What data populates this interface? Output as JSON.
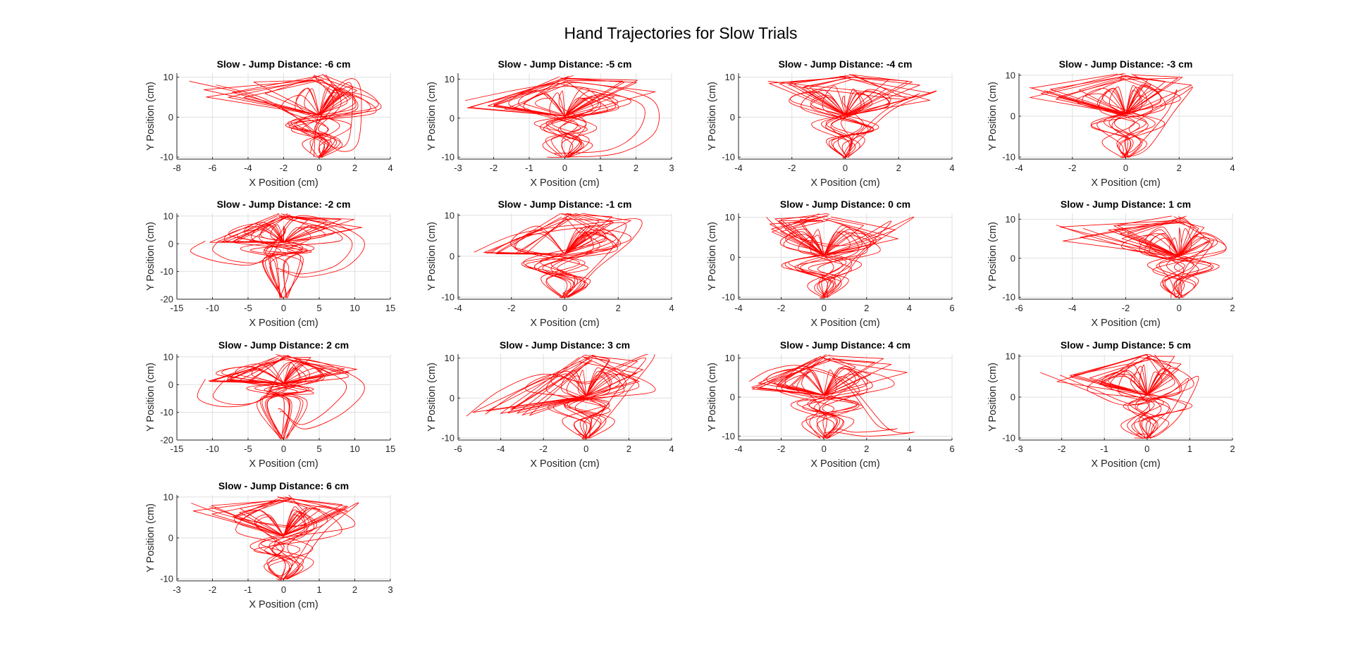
{
  "figure": {
    "title": "Hand Trajectories for Slow Trials",
    "line_color": "#ff0000"
  },
  "chart_data": [
    {
      "type": "line",
      "title": "Slow - Jump Distance: -6 cm",
      "jump": -6,
      "xlabel": "X Position (cm)",
      "ylabel": "Y Position (cm)",
      "xlim": [
        -8,
        4
      ],
      "ylim": [
        -10.5,
        11
      ],
      "xticks": [
        -8,
        -6,
        -4,
        -2,
        0,
        2,
        4
      ],
      "yticks": [
        -10,
        0,
        10
      ],
      "grid": true,
      "series": [
        {
          "x": [
            -7.3,
            -4,
            -1.5,
            0,
            1.2,
            2.2,
            2.3,
            1.4,
            0,
            -0.3
          ],
          "y": [
            9,
            5.5,
            0.5,
            -4.5,
            -8.5,
            -6,
            7.5,
            9,
            1,
            -10
          ]
        }
      ]
    },
    {
      "type": "line",
      "title": "Slow - Jump Distance: -5 cm",
      "jump": -5,
      "xlabel": "X Position (cm)",
      "ylabel": "Y Position (cm)",
      "xlim": [
        -3,
        3
      ],
      "ylim": [
        -10.5,
        11.5
      ],
      "xticks": [
        -3,
        -2,
        -1,
        0,
        1,
        2,
        3
      ],
      "yticks": [
        -10,
        0,
        10
      ],
      "grid": true,
      "series": [
        {
          "x": [
            -2.8,
            -1.5,
            -0.5,
            0.5,
            2.0,
            2.6,
            2.5,
            1.5,
            0,
            -0.5
          ],
          "y": [
            4.5,
            7,
            8.5,
            9,
            6.5,
            3,
            -4,
            -9,
            -10,
            -10
          ]
        }
      ]
    },
    {
      "type": "line",
      "title": "Slow - Jump Distance: -4 cm",
      "jump": -4,
      "xlabel": "X Position (cm)",
      "ylabel": "Y Position (cm)",
      "xlim": [
        -4,
        4
      ],
      "ylim": [
        -10.5,
        11
      ],
      "xticks": [
        -4,
        -2,
        0,
        2,
        4
      ],
      "yticks": [
        -10,
        0,
        10
      ],
      "grid": true,
      "series": [
        {
          "x": [
            -2.9,
            -1.5,
            0,
            1.2,
            2.5,
            3.4,
            1.8,
            0.5,
            0,
            -0.1
          ],
          "y": [
            9,
            8,
            7,
            6,
            5,
            6.5,
            2,
            -6,
            -10,
            -10
          ]
        }
      ]
    },
    {
      "type": "line",
      "title": "Slow - Jump Distance: -3 cm",
      "jump": -3,
      "xlabel": "X Position (cm)",
      "ylabel": "Y Position (cm)",
      "xlim": [
        -4,
        4
      ],
      "ylim": [
        -10.5,
        10.5
      ],
      "xticks": [
        -4,
        -2,
        0,
        2,
        4
      ],
      "yticks": [
        -10,
        0,
        10
      ],
      "grid": true,
      "series": [
        {
          "x": [
            -3.6,
            -2,
            -1,
            0.5,
            2,
            2.5,
            1.8,
            0.8,
            0,
            -0.2
          ],
          "y": [
            7,
            4,
            2,
            0,
            5,
            7,
            1,
            -8,
            -10,
            -10
          ]
        }
      ]
    },
    {
      "type": "line",
      "title": "Slow - Jump Distance: -2 cm",
      "jump": -2,
      "xlabel": "X Position (cm)",
      "ylabel": "Y Position (cm)",
      "xlim": [
        -15,
        15
      ],
      "ylim": [
        -20,
        11
      ],
      "xticks": [
        -15,
        -10,
        -5,
        0,
        5,
        10,
        15
      ],
      "yticks": [
        -20,
        -10,
        0,
        10
      ],
      "grid": true,
      "series": [
        {
          "x": [
            -11,
            -13,
            -8,
            -3,
            2,
            11,
            9,
            3,
            0,
            -0.5
          ],
          "y": [
            1,
            -3,
            -7,
            -6,
            10,
            2,
            -8,
            -12,
            -10,
            -10
          ]
        }
      ]
    },
    {
      "type": "line",
      "title": "Slow - Jump Distance: -1 cm",
      "jump": -1,
      "xlabel": "X Position (cm)",
      "ylabel": "Y Position (cm)",
      "xlim": [
        -4,
        4
      ],
      "ylim": [
        -10.5,
        10.5
      ],
      "xticks": [
        -4,
        -2,
        0,
        2,
        4
      ],
      "yticks": [
        -10,
        0,
        10
      ],
      "grid": true,
      "series": [
        {
          "x": [
            -3.4,
            -2,
            -0.5,
            1,
            2.8,
            2.5,
            1.2,
            0.5,
            0,
            -0.2
          ],
          "y": [
            1,
            5,
            7,
            8,
            9,
            4,
            -3,
            -8,
            -10,
            -10
          ]
        }
      ]
    },
    {
      "type": "line",
      "title": "Slow - Jump Distance: 0 cm",
      "jump": 0,
      "xlabel": "X Position (cm)",
      "ylabel": "Y Position (cm)",
      "xlim": [
        -4,
        6
      ],
      "ylim": [
        -10.5,
        11
      ],
      "xticks": [
        -4,
        -2,
        0,
        2,
        4,
        6
      ],
      "yticks": [
        -10,
        0,
        10
      ],
      "grid": true,
      "series": [
        {
          "x": [
            -2.7,
            -1.8,
            -0.5,
            1,
            2.5,
            4.2,
            2,
            0.8,
            0,
            -0.2
          ],
          "y": [
            10,
            6,
            4,
            3,
            6,
            10,
            2,
            -6,
            -10,
            -10
          ]
        }
      ]
    },
    {
      "type": "line",
      "title": "Slow - Jump Distance: 1 cm",
      "jump": 1,
      "xlabel": "X Position (cm)",
      "ylabel": "Y Position (cm)",
      "xlim": [
        -6,
        2
      ],
      "ylim": [
        -10.5,
        11.5
      ],
      "xticks": [
        -6,
        -4,
        -2,
        0,
        2
      ],
      "yticks": [
        -10,
        0,
        10
      ],
      "grid": true,
      "series": [
        {
          "x": [
            -4.6,
            -3.5,
            -2,
            -0.5,
            0.5,
            1.3,
            0.6,
            -0.2,
            -0.3,
            -0.3
          ],
          "y": [
            8.5,
            6,
            3,
            0,
            2,
            4.5,
            -2,
            -8,
            -10,
            -10
          ]
        }
      ]
    },
    {
      "type": "line",
      "title": "Slow - Jump Distance: 2 cm",
      "jump": 2,
      "xlabel": "X Position (cm)",
      "ylabel": "Y Position (cm)",
      "xlim": [
        -15,
        15
      ],
      "ylim": [
        -20,
        11
      ],
      "xticks": [
        -15,
        -10,
        -5,
        0,
        5,
        10,
        15
      ],
      "yticks": [
        -20,
        -10,
        0,
        10
      ],
      "grid": true,
      "series": [
        {
          "x": [
            -11,
            -12,
            -8,
            -3,
            2,
            11,
            9,
            3,
            0,
            -0.5
          ],
          "y": [
            2,
            -5,
            -8,
            -5,
            9,
            1,
            -9,
            -16,
            -10,
            -10
          ]
        }
      ]
    },
    {
      "type": "line",
      "title": "Slow - Jump Distance: 3 cm",
      "jump": 3,
      "xlabel": "X Position (cm)",
      "ylabel": "Y Position (cm)",
      "xlim": [
        -6,
        4
      ],
      "ylim": [
        -10.5,
        11
      ],
      "xticks": [
        -6,
        -4,
        -2,
        0,
        2,
        4
      ],
      "yticks": [
        -10,
        0,
        10
      ],
      "grid": true,
      "series": [
        {
          "x": [
            -5.6,
            -4,
            -2,
            0,
            1.5,
            3.2,
            2,
            0.8,
            0,
            -0.2
          ],
          "y": [
            -4.5,
            2,
            6,
            4,
            8,
            11,
            2,
            -6,
            -10,
            -10
          ]
        }
      ]
    },
    {
      "type": "line",
      "title": "Slow - Jump Distance: 4 cm",
      "jump": 4,
      "xlabel": "X Position (cm)",
      "ylabel": "Y Position (cm)",
      "xlim": [
        -4,
        6
      ],
      "ylim": [
        -11,
        11
      ],
      "xticks": [
        -4,
        -2,
        0,
        2,
        4,
        6
      ],
      "yticks": [
        -10,
        0,
        10
      ],
      "grid": true,
      "series": [
        {
          "x": [
            -3.5,
            -2.5,
            -1,
            1,
            3,
            4.2,
            2,
            0.5,
            0,
            -0.2
          ],
          "y": [
            4,
            7,
            8,
            4,
            -8,
            -9,
            -10,
            -9,
            -10,
            -10
          ]
        }
      ]
    },
    {
      "type": "line",
      "title": "Slow - Jump Distance: 5 cm",
      "jump": 5,
      "xlabel": "X Position (cm)",
      "ylabel": "Y Position (cm)",
      "xlim": [
        -3,
        2
      ],
      "ylim": [
        -10.5,
        10.5
      ],
      "xticks": [
        -3,
        -2,
        -1,
        0,
        1,
        2
      ],
      "yticks": [
        -10,
        0,
        10
      ],
      "grid": true,
      "series": [
        {
          "x": [
            -2.5,
            -1.5,
            -0.5,
            0.5,
            1.2,
            0.8,
            0.3,
            0,
            -0.2,
            -0.3
          ],
          "y": [
            6,
            2,
            -2,
            1,
            5,
            -4,
            -9,
            -10,
            -10,
            -10
          ]
        }
      ]
    },
    {
      "type": "line",
      "title": "Slow - Jump Distance: 6 cm",
      "jump": 6,
      "xlabel": "X Position (cm)",
      "ylabel": "Y Position (cm)",
      "xlim": [
        -3,
        3
      ],
      "ylim": [
        -10.5,
        10.5
      ],
      "xticks": [
        -3,
        -2,
        -1,
        0,
        1,
        2,
        3
      ],
      "yticks": [
        -10,
        0,
        10
      ],
      "grid": true,
      "series": [
        {
          "x": [
            -2.6,
            -1.8,
            -0.8,
            0.5,
            1.5,
            2.1,
            1.2,
            0.5,
            0,
            -0.2
          ],
          "y": [
            8.5,
            6,
            4,
            3,
            6,
            8.5,
            2,
            -6,
            -10,
            -10
          ]
        }
      ]
    }
  ]
}
